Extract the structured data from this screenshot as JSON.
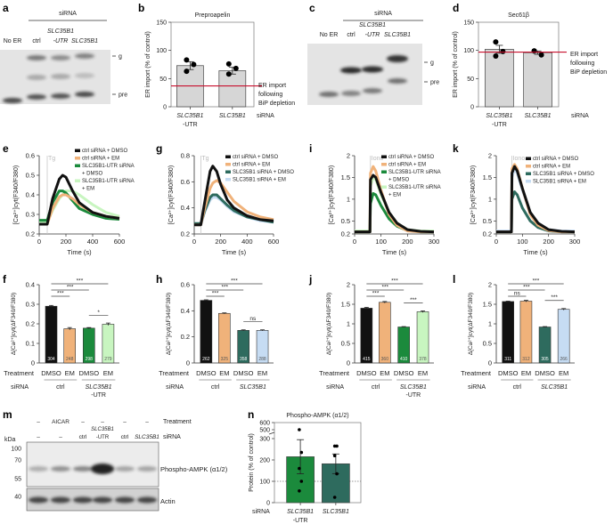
{
  "colors": {
    "ctrl_dmso": "#111111",
    "ctrl_em": "#f0b27a",
    "utr_dmso": "#1b8a3c",
    "utr_em": "#c8f5c0",
    "kd_dmso": "#2e6b5e",
    "kd_em": "#c6dcf3",
    "bar_gray": "#d6d6d6",
    "bip_line": "#c8102e"
  },
  "blots": [
    {
      "label": "a",
      "header": "siRNA",
      "lanes": [
        {
          "text": "No ER"
        },
        {
          "text": "ctrl"
        },
        {
          "text": "SLC35B1",
          "sub": "-UTR",
          "italic": true
        },
        {
          "text": "SLC35B1",
          "italic": true
        }
      ],
      "bands": [
        "g",
        "pre"
      ]
    },
    {
      "label": "c",
      "header": "siRNA",
      "lanes": [
        {
          "text": "No ER"
        },
        {
          "text": "ctrl"
        },
        {
          "text": "SLC35B1",
          "sub": "-UTR",
          "italic": true
        },
        {
          "text": "SLC35B1",
          "italic": true
        }
      ],
      "bands": [
        "g",
        "pre"
      ]
    },
    {
      "label": "m",
      "kda": "kDa",
      "markers": [
        "100",
        "70",
        "55",
        "40"
      ],
      "treatment_label": "Treatment",
      "sirna_label": "siRNA",
      "treatment": [
        "–",
        "AICAR",
        "–",
        "–",
        "–",
        "–"
      ],
      "sirna": [
        {
          "text": "–"
        },
        {
          "text": "–"
        },
        {
          "text": "ctrl"
        },
        {
          "text": "SLC35B1",
          "sub": "-UTR",
          "italic": true
        },
        {
          "text": "ctrl"
        },
        {
          "text": "SLC35B1",
          "italic": true
        }
      ],
      "bands": [
        "Phospho-AMPK (α1/2)",
        "Actin"
      ]
    }
  ],
  "chart_data": [
    {
      "label": "b",
      "type": "bar",
      "title": "Preproapelin",
      "ylabel": "ER import (% of control)",
      "ylim": [
        0,
        150
      ],
      "yticks": [
        0,
        50,
        100,
        150
      ],
      "categories": [
        {
          "text": "SLC35B1",
          "sub": "-UTR"
        },
        {
          "text": "SLC35B1"
        }
      ],
      "xlabel": "siRNA",
      "values": [
        73,
        64
      ],
      "errors": [
        7,
        6
      ],
      "points": [
        [
          83,
          75,
          63
        ],
        [
          76,
          68,
          58
        ]
      ],
      "reference": {
        "value": 37,
        "text": [
          "ER import",
          "following",
          "BiP depletion"
        ]
      }
    },
    {
      "label": "d",
      "type": "bar",
      "title": "Sec61β",
      "ylabel": "ER import (% of control)",
      "ylim": [
        0,
        150
      ],
      "yticks": [
        0,
        50,
        100,
        150
      ],
      "categories": [
        {
          "text": "SLC35B1",
          "sub": "-UTR"
        },
        {
          "text": "SLC35B1"
        }
      ],
      "xlabel": "siRNA",
      "values": [
        102,
        96
      ],
      "errors": [
        7,
        3
      ],
      "points": [
        [
          115,
          98,
          90
        ],
        [
          99,
          92,
          99
        ]
      ],
      "reference": {
        "value": 97,
        "text": [
          "ER import",
          "following",
          "BiP depletion"
        ]
      }
    },
    {
      "label": "e",
      "type": "line",
      "ylabel": "[Ca²⁺]cyt(F340/F380)",
      "xlabel": "Time (s)",
      "xlim": [
        0,
        600
      ],
      "ylim": [
        0.2,
        0.6
      ],
      "xticks": [
        0,
        200,
        400,
        600
      ],
      "yticks": [
        0.2,
        0.3,
        0.4,
        0.5,
        0.6
      ],
      "marker": {
        "text": "Tg",
        "x": 60
      },
      "x": [
        0,
        60,
        100,
        150,
        175,
        200,
        250,
        300,
        400,
        500,
        600
      ],
      "series": [
        {
          "name": "ctrl siRNA + DMSO",
          "color": "#111111",
          "values": [
            0.25,
            0.25,
            0.38,
            0.48,
            0.5,
            0.49,
            0.42,
            0.36,
            0.31,
            0.29,
            0.28
          ]
        },
        {
          "name": "ctrl siRNA + EM",
          "color": "#f0b27a",
          "values": [
            0.25,
            0.25,
            0.33,
            0.39,
            0.4,
            0.4,
            0.38,
            0.35,
            0.31,
            0.29,
            0.28
          ]
        },
        {
          "name": "SLC35B1-UTR siRNA",
          "name2": "+ DMSO",
          "color": "#1b8a3c",
          "values": [
            0.27,
            0.27,
            0.36,
            0.42,
            0.42,
            0.41,
            0.37,
            0.33,
            0.3,
            0.28,
            0.275
          ]
        },
        {
          "name": "SLC35B1-UTR siRNA",
          "name2": "+ EM",
          "color": "#c8f5c0",
          "values": [
            0.26,
            0.26,
            0.32,
            0.38,
            0.4,
            0.42,
            0.42,
            0.4,
            0.35,
            0.31,
            0.29
          ]
        }
      ]
    },
    {
      "label": "g",
      "type": "line",
      "ylabel": "[Ca²⁺]cyt(F340/F380)",
      "xlabel": "Time (s)",
      "xlim": [
        0,
        600
      ],
      "ylim": [
        0.2,
        0.8
      ],
      "xticks": [
        0,
        200,
        400,
        600
      ],
      "yticks": [
        0.2,
        0.4,
        0.6,
        0.8
      ],
      "marker": {
        "text": "Tg",
        "x": 50
      },
      "x": [
        0,
        50,
        80,
        120,
        140,
        170,
        200,
        250,
        300,
        400,
        500,
        600
      ],
      "series": [
        {
          "name": "ctrl siRNA + DMSO",
          "color": "#111111",
          "values": [
            0.27,
            0.27,
            0.45,
            0.68,
            0.72,
            0.68,
            0.58,
            0.46,
            0.4,
            0.34,
            0.31,
            0.3
          ]
        },
        {
          "name": "ctrl siRNA + EM",
          "color": "#f0b27a",
          "values": [
            0.27,
            0.27,
            0.4,
            0.55,
            0.59,
            0.61,
            0.59,
            0.52,
            0.45,
            0.37,
            0.33,
            0.31
          ]
        },
        {
          "name": "SLC35B1 siRNA + DMSO",
          "color": "#2e6b5e",
          "values": [
            0.28,
            0.28,
            0.38,
            0.48,
            0.5,
            0.5,
            0.47,
            0.42,
            0.38,
            0.33,
            0.31,
            0.29
          ]
        },
        {
          "name": "SLC35B1 siRNA + EM",
          "color": "#c6dcf3",
          "values": [
            0.27,
            0.27,
            0.37,
            0.46,
            0.48,
            0.48,
            0.46,
            0.41,
            0.37,
            0.33,
            0.3,
            0.29
          ]
        }
      ]
    },
    {
      "label": "i",
      "type": "line",
      "ylabel": "[Ca²⁺]cyt(F340/F380)",
      "xlabel": "Time (s)",
      "xlim": [
        0,
        300
      ],
      "ylim": [
        0.2,
        2.0
      ],
      "xticks": [
        0,
        100,
        200,
        300
      ],
      "yticks": [
        0.2,
        0.5,
        1.0,
        1.5,
        2.0
      ],
      "marker": {
        "text": "Iono",
        "x": 60
      },
      "x": [
        0,
        58,
        60,
        70,
        80,
        100,
        130,
        160,
        200,
        250,
        300
      ],
      "series": [
        {
          "name": "ctrl siRNA + DMSO",
          "color": "#111111",
          "values": [
            0.25,
            0.25,
            1.45,
            1.55,
            1.5,
            1.15,
            0.7,
            0.45,
            0.3,
            0.26,
            0.25
          ]
        },
        {
          "name": "ctrl siRNA + EM",
          "color": "#f0b27a",
          "values": [
            0.25,
            0.25,
            1.6,
            1.75,
            1.65,
            1.2,
            0.65,
            0.4,
            0.27,
            0.25,
            0.25
          ]
        },
        {
          "name": "SLC35B1-UTR siRNA",
          "name2": "+ DMSO",
          "color": "#1b8a3c",
          "values": [
            0.25,
            0.25,
            0.9,
            1.13,
            1.1,
            0.85,
            0.55,
            0.38,
            0.28,
            0.25,
            0.25
          ]
        },
        {
          "name": "SLC35B1-UTR siRNA",
          "name2": "+ EM",
          "color": "#c8f5c0",
          "values": [
            0.27,
            0.27,
            1.3,
            1.5,
            1.45,
            1.1,
            0.7,
            0.45,
            0.3,
            0.27,
            0.27
          ]
        }
      ]
    },
    {
      "label": "k",
      "type": "line",
      "ylabel": "[Ca²⁺]cyt(F340/F380)",
      "xlabel": "Time (s)",
      "xlim": [
        0,
        300
      ],
      "ylim": [
        0.2,
        2.0
      ],
      "xticks": [
        0,
        100,
        200,
        300
      ],
      "yticks": [
        0.2,
        0.5,
        1.0,
        1.5,
        2.0
      ],
      "marker": {
        "text": "Iono",
        "x": 60
      },
      "x": [
        0,
        58,
        60,
        70,
        80,
        100,
        130,
        160,
        200,
        250,
        300
      ],
      "series": [
        {
          "name": "ctrl siRNA + DMSO",
          "color": "#111111",
          "values": [
            0.25,
            0.25,
            1.6,
            1.75,
            1.65,
            1.25,
            0.7,
            0.45,
            0.3,
            0.26,
            0.25
          ]
        },
        {
          "name": "ctrl siRNA + EM",
          "color": "#f0b27a",
          "values": [
            0.25,
            0.25,
            1.7,
            1.8,
            1.7,
            1.25,
            0.65,
            0.4,
            0.28,
            0.25,
            0.25
          ]
        },
        {
          "name": "SLC35B1 siRNA + DMSO",
          "color": "#2e6b5e",
          "values": [
            0.25,
            0.25,
            1.0,
            1.17,
            1.1,
            0.8,
            0.5,
            0.35,
            0.27,
            0.25,
            0.25
          ]
        },
        {
          "name": "SLC35B1 siRNA + EM",
          "color": "#c6dcf3",
          "values": [
            0.27,
            0.27,
            1.5,
            1.7,
            1.6,
            1.2,
            0.7,
            0.45,
            0.3,
            0.27,
            0.27
          ]
        }
      ]
    },
    {
      "label": "f",
      "type": "bar",
      "ylabel": "Δ[Ca²⁺]cyt(ΔF340/F380)",
      "ylim": [
        0,
        0.4
      ],
      "yticks": [
        0,
        0.1,
        0.2,
        0.3,
        0.4
      ],
      "treatment_label": "Treatment",
      "sirna_label": "siRNA",
      "categories": [
        "DMSO",
        "EM",
        "DMSO",
        "EM"
      ],
      "groups": [
        {
          "text": "ctrl"
        },
        {
          "text": "SLC35B1",
          "sub": "-UTR"
        }
      ],
      "values": [
        0.29,
        0.175,
        0.178,
        0.198
      ],
      "errors": [
        0.004,
        0.006,
        0.003,
        0.006
      ],
      "n": [
        "304",
        "248",
        "298",
        "279"
      ],
      "colors": [
        "#111111",
        "#f0b27a",
        "#1b8a3c",
        "#c8f5c0"
      ],
      "significance": [
        [
          0,
          1,
          "***"
        ],
        [
          0,
          2,
          "***"
        ],
        [
          0,
          3,
          "***"
        ],
        [
          2,
          3,
          "*"
        ]
      ]
    },
    {
      "label": "h",
      "type": "bar",
      "ylabel": "Δ[Ca²⁺]cyt(ΔF340/F380)",
      "ylim": [
        0,
        0.6
      ],
      "yticks": [
        0,
        0.2,
        0.4,
        0.6
      ],
      "treatment_label": "Treatment",
      "sirna_label": "siRNA",
      "categories": [
        "DMSO",
        "EM",
        "DMSO",
        "EM"
      ],
      "groups": [
        {
          "text": "ctrl"
        },
        {
          "text": "SLC35B1"
        }
      ],
      "values": [
        0.48,
        0.38,
        0.25,
        0.25
      ],
      "errors": [
        0.004,
        0.004,
        0.004,
        0.004
      ],
      "n": [
        "262",
        "325",
        "358",
        "288"
      ],
      "colors": [
        "#111111",
        "#f0b27a",
        "#2e6b5e",
        "#c6dcf3"
      ],
      "significance": [
        [
          0,
          1,
          "***"
        ],
        [
          0,
          2,
          "***"
        ],
        [
          0,
          3,
          "***"
        ],
        [
          2,
          3,
          "ns"
        ]
      ]
    },
    {
      "label": "j",
      "type": "bar",
      "ylabel": "Δ[Ca²⁺]cyt(ΔF340/F380)",
      "ylim": [
        0,
        2.0
      ],
      "yticks": [
        0,
        0.5,
        1.0,
        1.5,
        2.0
      ],
      "treatment_label": "Treatment",
      "sirna_label": "siRNA",
      "categories": [
        "DMSO",
        "EM",
        "DMSO",
        "EM"
      ],
      "groups": [
        {
          "text": "ctrl"
        },
        {
          "text": "SLC35B1",
          "sub": "-UTR"
        }
      ],
      "values": [
        1.4,
        1.55,
        0.92,
        1.31
      ],
      "errors": [
        0.02,
        0.02,
        0.01,
        0.02
      ],
      "n": [
        "415",
        "360",
        "410",
        "378"
      ],
      "colors": [
        "#111111",
        "#f0b27a",
        "#1b8a3c",
        "#c8f5c0"
      ],
      "significance": [
        [
          0,
          1,
          "***"
        ],
        [
          0,
          2,
          "***"
        ],
        [
          0,
          3,
          "***"
        ],
        [
          2,
          3,
          "***"
        ]
      ]
    },
    {
      "label": "l",
      "type": "bar",
      "ylabel": "Δ[Ca²⁺]cyt(ΔF340/F380)",
      "ylim": [
        0,
        2.0
      ],
      "yticks": [
        0,
        0.5,
        1.0,
        1.5,
        2.0
      ],
      "treatment_label": "Treatment",
      "sirna_label": "siRNA",
      "categories": [
        "DMSO",
        "EM",
        "DMSO",
        "EM"
      ],
      "groups": [
        {
          "text": "ctrl"
        },
        {
          "text": "SLC35B1"
        }
      ],
      "values": [
        1.57,
        1.58,
        0.92,
        1.37
      ],
      "errors": [
        0.01,
        0.02,
        0.01,
        0.02
      ],
      "n": [
        "311",
        "312",
        "305",
        "266"
      ],
      "colors": [
        "#111111",
        "#f0b27a",
        "#2e6b5e",
        "#c6dcf3"
      ],
      "significance": [
        [
          0,
          1,
          "ns"
        ],
        [
          0,
          2,
          "***"
        ],
        [
          0,
          3,
          "***"
        ],
        [
          2,
          3,
          "***"
        ]
      ]
    },
    {
      "label": "n",
      "type": "bar",
      "title": "Phospho-AMPK (α1/2)",
      "ylabel": "Protein (% of control)",
      "ylim": [
        0,
        600
      ],
      "axis_break": [
        300,
        500
      ],
      "yticks": [
        0,
        100,
        200,
        300,
        500,
        600
      ],
      "xlabel": "siRNA",
      "categories": [
        {
          "text": "SLC35B1",
          "sub": "-UTR"
        },
        {
          "text": "SLC35B1"
        }
      ],
      "values": [
        215,
        182
      ],
      "errors": [
        80,
        46
      ],
      "points": [
        [
          500,
          235,
          160,
          100,
          55
        ],
        [
          265,
          265,
          220,
          135,
          25
        ]
      ],
      "colors": [
        "#1b8a3c",
        "#2e6b5e"
      ],
      "reference_dotted": 100
    }
  ]
}
